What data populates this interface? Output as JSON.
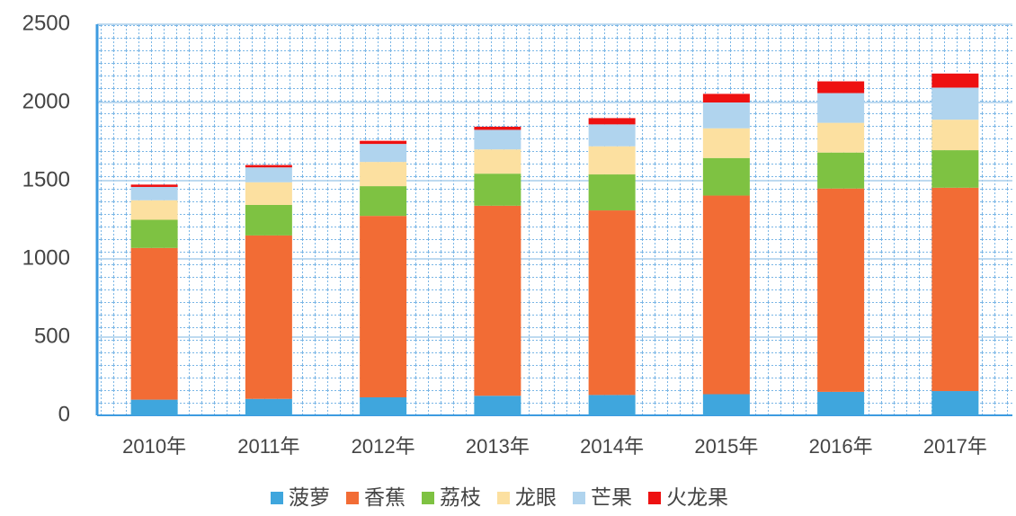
{
  "chart_data": {
    "type": "stacked_bar",
    "categories": [
      "2010年",
      "2011年",
      "2012年",
      "2013年",
      "2014年",
      "2015年",
      "2016年",
      "2017年"
    ],
    "series": [
      {
        "name": "菠萝",
        "color": "#3fa6dd",
        "values": [
          100,
          105,
          115,
          125,
          130,
          135,
          150,
          155
        ]
      },
      {
        "name": "香蕉",
        "color": "#f26c35",
        "values": [
          970,
          1045,
          1160,
          1215,
          1180,
          1270,
          1300,
          1300
        ]
      },
      {
        "name": "荔枝",
        "color": "#7ec242",
        "values": [
          180,
          195,
          190,
          205,
          230,
          240,
          230,
          240
        ]
      },
      {
        "name": "龙眼",
        "color": "#fce0a0",
        "values": [
          125,
          145,
          155,
          155,
          180,
          190,
          190,
          195
        ]
      },
      {
        "name": "芒果",
        "color": "#b0d4ee",
        "values": [
          85,
          95,
          115,
          125,
          140,
          165,
          190,
          205
        ]
      },
      {
        "name": "火龙果",
        "color": "#ee1111",
        "values": [
          15,
          15,
          20,
          20,
          40,
          55,
          75,
          90
        ]
      }
    ],
    "ylim": [
      0,
      2500
    ],
    "yticks": [
      0,
      500,
      1000,
      1500,
      2000,
      2500
    ],
    "grid": true,
    "legend": "bottom"
  }
}
